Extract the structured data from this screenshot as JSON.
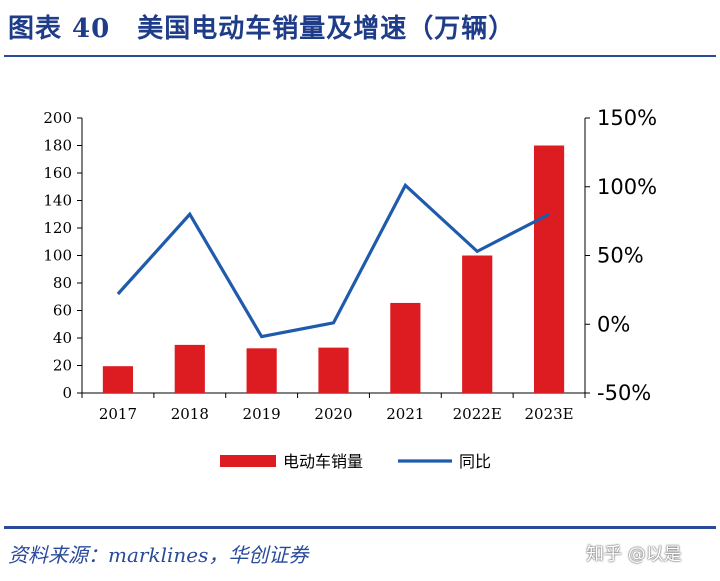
{
  "header": {
    "title": "图表 40　美国电动车销量及增速（万辆）"
  },
  "source": "资料来源：marklines，华创证券",
  "watermark": "知乎 @以是",
  "colors": {
    "bar": "#dd1c22",
    "line": "#1f5bad",
    "accent": "#2a4a9a"
  },
  "chart_data": {
    "type": "bar",
    "categories": [
      "2017",
      "2018",
      "2019",
      "2020",
      "2021",
      "2022E",
      "2023E"
    ],
    "series": [
      {
        "name": "电动车销量",
        "type": "bar",
        "axis": "left",
        "values": [
          19.5,
          35,
          32.5,
          33,
          65.5,
          100,
          180
        ]
      },
      {
        "name": "同比",
        "type": "line",
        "axis": "right",
        "values": [
          0.22,
          0.8,
          -0.09,
          0.01,
          1.01,
          0.53,
          0.8
        ]
      }
    ],
    "y_left": {
      "min": 0,
      "max": 200,
      "ticks": [
        "0",
        "20",
        "40",
        "60",
        "80",
        "100",
        "120",
        "140",
        "160",
        "180",
        "200"
      ]
    },
    "y_right": {
      "min": -0.5,
      "max": 1.5,
      "ticks": [
        "-50%",
        "0%",
        "50%",
        "100%",
        "150%"
      ]
    },
    "legend": {
      "position": "bottom",
      "items": [
        "电动车销量",
        "同比"
      ]
    },
    "grid": false
  }
}
